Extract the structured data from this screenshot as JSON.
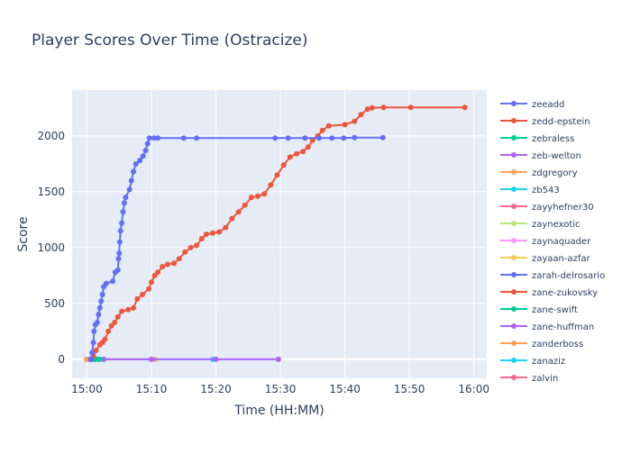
{
  "chart_data": {
    "type": "line",
    "title": "Player Scores Over Time (Ostracize)",
    "xlabel": "Time (HH:MM)",
    "ylabel": "Score",
    "x_ticks": [
      "15:00",
      "15:10",
      "15:20",
      "15:30",
      "15:40",
      "15:50",
      "16:00"
    ],
    "y_ticks": [
      0,
      500,
      1000,
      1500,
      2000
    ],
    "xlim": [
      "14:57.7",
      "16:02.0"
    ],
    "ylim": [
      -170,
      2410
    ],
    "grid": true,
    "legend_position": "right",
    "series": [
      {
        "name": "zeeadd",
        "color": "#636efa",
        "points": [
          [
            "15:00.6",
            0
          ],
          [
            "15:00.8",
            60
          ],
          [
            "15:01.0",
            150
          ],
          [
            "15:01.1",
            250
          ],
          [
            "15:01.3",
            310
          ],
          [
            "15:01.6",
            330
          ],
          [
            "15:01.8",
            400
          ],
          [
            "15:02.0",
            460
          ],
          [
            "15:02.2",
            520
          ],
          [
            "15:02.4",
            580
          ],
          [
            "15:02.6",
            650
          ],
          [
            "15:03.0",
            680
          ],
          [
            "15:04.0",
            700
          ],
          [
            "15:04.4",
            780
          ],
          [
            "15:04.8",
            800
          ],
          [
            "15:04.9",
            900
          ],
          [
            "15:05.0",
            950
          ],
          [
            "15:05.1",
            1050
          ],
          [
            "15:05.2",
            1150
          ],
          [
            "15:05.4",
            1220
          ],
          [
            "15:05.6",
            1320
          ],
          [
            "15:05.8",
            1400
          ],
          [
            "15:06.0",
            1450
          ],
          [
            "15:06.6",
            1520
          ],
          [
            "15:06.9",
            1600
          ],
          [
            "15:07.2",
            1680
          ],
          [
            "15:07.6",
            1750
          ],
          [
            "15:08.2",
            1780
          ],
          [
            "15:08.7",
            1820
          ],
          [
            "15:09.1",
            1870
          ],
          [
            "15:09.4",
            1930
          ],
          [
            "15:09.7",
            1980
          ],
          [
            "15:10.4",
            1980
          ],
          [
            "15:11.0",
            1980
          ],
          [
            "15:15.0",
            1980
          ],
          [
            "15:17.0",
            1980
          ],
          [
            "15:29.2",
            1980
          ],
          [
            "15:31.2",
            1980
          ],
          [
            "15:33.8",
            1980
          ],
          [
            "15:36.0",
            1980
          ],
          [
            "15:38.0",
            1980
          ],
          [
            "15:39.8",
            1980
          ],
          [
            "15:41.5",
            1985
          ],
          [
            "15:45.9",
            1985
          ]
        ]
      },
      {
        "name": "zedd-epstein",
        "color": "#ef553b",
        "points": [
          [
            "15:00.7",
            0
          ],
          [
            "15:01.0",
            30
          ],
          [
            "15:01.4",
            80
          ],
          [
            "15:02.0",
            130
          ],
          [
            "15:02.4",
            150
          ],
          [
            "15:02.8",
            180
          ],
          [
            "15:03.3",
            250
          ],
          [
            "15:03.8",
            300
          ],
          [
            "15:04.3",
            330
          ],
          [
            "15:04.8",
            380
          ],
          [
            "15:05.4",
            430
          ],
          [
            "15:06.4",
            445
          ],
          [
            "15:07.2",
            460
          ],
          [
            "15:07.8",
            540
          ],
          [
            "15:08.6",
            580
          ],
          [
            "15:09.6",
            630
          ],
          [
            "15:10.0",
            690
          ],
          [
            "15:10.5",
            750
          ],
          [
            "15:11.0",
            780
          ],
          [
            "15:11.7",
            830
          ],
          [
            "15:12.5",
            850
          ],
          [
            "15:13.5",
            860
          ],
          [
            "15:14.3",
            900
          ],
          [
            "15:15.2",
            960
          ],
          [
            "15:16.1",
            1000
          ],
          [
            "15:17.0",
            1020
          ],
          [
            "15:17.8",
            1080
          ],
          [
            "15:18.5",
            1120
          ],
          [
            "15:19.5",
            1130
          ],
          [
            "15:20.5",
            1140
          ],
          [
            "15:21.5",
            1180
          ],
          [
            "15:22.5",
            1260
          ],
          [
            "15:23.5",
            1320
          ],
          [
            "15:24.5",
            1380
          ],
          [
            "15:25.5",
            1450
          ],
          [
            "15:26.5",
            1460
          ],
          [
            "15:27.5",
            1480
          ],
          [
            "15:28.5",
            1560
          ],
          [
            "15:29.5",
            1650
          ],
          [
            "15:30.5",
            1740
          ],
          [
            "15:31.5",
            1810
          ],
          [
            "15:32.5",
            1840
          ],
          [
            "15:33.5",
            1860
          ],
          [
            "15:34.3",
            1900
          ],
          [
            "15:35.0",
            1960
          ],
          [
            "15:35.8",
            2000
          ],
          [
            "15:36.5",
            2050
          ],
          [
            "15:37.5",
            2090
          ],
          [
            "15:40.0",
            2100
          ],
          [
            "15:41.5",
            2130
          ],
          [
            "15:42.5",
            2190
          ],
          [
            "15:43.5",
            2240
          ],
          [
            "15:44.2",
            2250
          ],
          [
            "15:46.0",
            2255
          ],
          [
            "15:50.2",
            2255
          ],
          [
            "15:58.6",
            2255
          ]
        ]
      },
      {
        "name": "zebraless",
        "color": "#00cc96",
        "points": [
          [
            "15:00.9",
            0
          ],
          [
            "15:01.3",
            0
          ],
          [
            "15:01.8",
            0
          ],
          [
            "15:02.0",
            0
          ]
        ]
      },
      {
        "name": "zeb-welton",
        "color": "#ab63fa",
        "points": [
          [
            "15:00.5",
            0
          ],
          [
            "15:02.6",
            0
          ],
          [
            "15:10.0",
            0
          ],
          [
            "15:20.0",
            0
          ],
          [
            "15:29.7",
            0
          ]
        ]
      },
      {
        "name": "zdgregory",
        "color": "#ffa15a",
        "points": [
          [
            "14:59.9",
            0
          ],
          [
            "15:10.5",
            0
          ]
        ]
      },
      {
        "name": "zb543",
        "color": "#19d3f3",
        "points": [
          [
            "15:01.4",
            0
          ],
          [
            "15:19.5",
            0
          ]
        ]
      },
      {
        "name": "zayyhefner30",
        "color": "#ff6692",
        "points": []
      },
      {
        "name": "zaynexotic",
        "color": "#b6e880",
        "points": []
      },
      {
        "name": "zaynaquader",
        "color": "#ff97ff",
        "points": []
      },
      {
        "name": "zayaan-azfar",
        "color": "#fecb52",
        "points": []
      },
      {
        "name": "zarah-delrosario",
        "color": "#636efa",
        "points": []
      },
      {
        "name": "zane-zukovsky",
        "color": "#ef553b",
        "points": []
      },
      {
        "name": "zane-swift",
        "color": "#00cc96",
        "points": []
      },
      {
        "name": "zane-huffman",
        "color": "#ab63fa",
        "points": []
      },
      {
        "name": "zanderboss",
        "color": "#ffa15a",
        "points": []
      },
      {
        "name": "zanaziz",
        "color": "#19d3f3",
        "points": []
      },
      {
        "name": "zalvin",
        "color": "#ff6692",
        "points": []
      }
    ]
  }
}
